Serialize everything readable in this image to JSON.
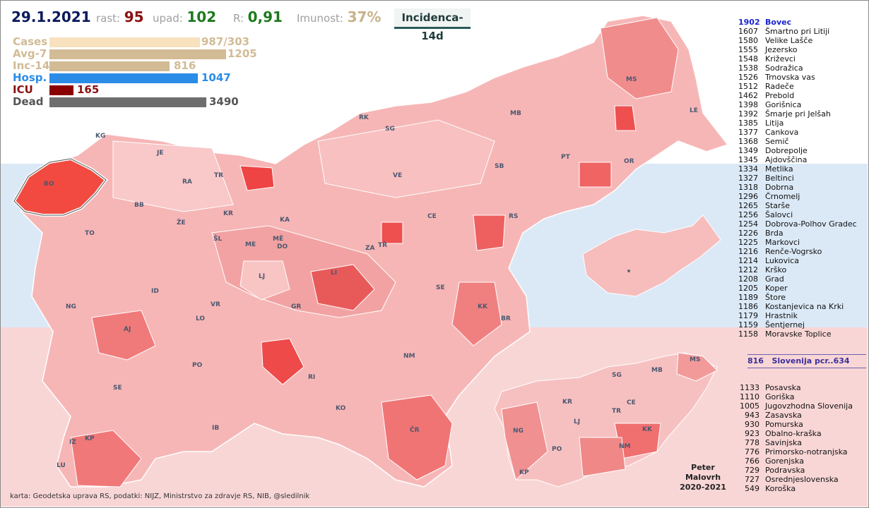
{
  "header": {
    "date": "29.1.2021",
    "rast_label": "rast:",
    "rast_value": "95",
    "upad_label": "upad:",
    "upad_value": "102",
    "r_label": "R:",
    "r_value": "0,91",
    "imunost_label": "Imunost:",
    "imunost_value": "37%",
    "mode_button": "Incidenca-14d"
  },
  "stats": [
    {
      "label": "Cases",
      "value": "987/303",
      "color": "#f7e2bd",
      "fraction": 0.28
    },
    {
      "label": "Avg-7",
      "value": "1205",
      "color": "#d2bb95",
      "fraction": 0.35
    },
    {
      "label": "Inc-14",
      "value": "816",
      "color": "#d2bb95",
      "fraction": 0.23
    },
    {
      "label": "Hosp.",
      "value": "1047",
      "color": "#2b8ce8",
      "fraction": 0.3
    },
    {
      "label": "ICU",
      "value": "165",
      "color": "#8b0000",
      "fraction": 0.047
    },
    {
      "label": "Dead",
      "value": "3490",
      "color": "#6e6e6e",
      "fraction": 1.0
    }
  ],
  "stat_label_colors": [
    "#d2bb95",
    "#d2bb95",
    "#d2bb95",
    "#2b8ce8",
    "#8b1010",
    "#555555"
  ],
  "ranking": [
    {
      "n": "1902",
      "name": "Bovec"
    },
    {
      "n": "1607",
      "name": "Šmartno pri Litiji"
    },
    {
      "n": "1580",
      "name": "Velike Lašče"
    },
    {
      "n": "1555",
      "name": "Jezersko"
    },
    {
      "n": "1548",
      "name": "Križevci"
    },
    {
      "n": "1538",
      "name": "Sodražica"
    },
    {
      "n": "1526",
      "name": "Trnovska vas"
    },
    {
      "n": "1512",
      "name": "Radeče"
    },
    {
      "n": "1462",
      "name": "Prebold"
    },
    {
      "n": "1398",
      "name": "Gorišnica"
    },
    {
      "n": "1392",
      "name": "Šmarje pri Jelšah"
    },
    {
      "n": "1385",
      "name": "Litija"
    },
    {
      "n": "1377",
      "name": "Cankova"
    },
    {
      "n": "1368",
      "name": "Semič"
    },
    {
      "n": "1349",
      "name": "Dobrepolje"
    },
    {
      "n": "1345",
      "name": "Ajdovščina"
    },
    {
      "n": "1334",
      "name": "Metlika"
    },
    {
      "n": "1327",
      "name": "Beltinci"
    },
    {
      "n": "1318",
      "name": "Dobrna"
    },
    {
      "n": "1296",
      "name": "Črnomelj"
    },
    {
      "n": "1265",
      "name": "Starše"
    },
    {
      "n": "1256",
      "name": "Šalovci"
    },
    {
      "n": "1254",
      "name": "Dobrova-Polhov Gradec"
    },
    {
      "n": "1226",
      "name": "Brda"
    },
    {
      "n": "1225",
      "name": "Markovci"
    },
    {
      "n": "1216",
      "name": "Renče-Vogrsko"
    },
    {
      "n": "1214",
      "name": "Lukovica"
    },
    {
      "n": "1212",
      "name": "Krško"
    },
    {
      "n": "1208",
      "name": "Grad"
    },
    {
      "n": "1205",
      "name": "Koper"
    },
    {
      "n": "1189",
      "name": "Štore"
    },
    {
      "n": "1186",
      "name": "Kostanjevica na Krki"
    },
    {
      "n": "1179",
      "name": "Hrastnik"
    },
    {
      "n": "1159",
      "name": "Šentjernej"
    },
    {
      "n": "1158",
      "name": "Moravske Toplice"
    }
  ],
  "slovenia": {
    "n": "816",
    "name": "Slovenija  pcr..634"
  },
  "regions": [
    {
      "n": "1133",
      "name": "Posavska"
    },
    {
      "n": "1110",
      "name": "Goriška"
    },
    {
      "n": "1005",
      "name": "Jugovzhodna Slovenija"
    },
    {
      "n": "943",
      "name": "Zasavska"
    },
    {
      "n": "930",
      "name": "Pomurska"
    },
    {
      "n": "923",
      "name": "Obalno-kraška"
    },
    {
      "n": "778",
      "name": "Savinjska"
    },
    {
      "n": "776",
      "name": "Primorsko-notranjska"
    },
    {
      "n": "766",
      "name": "Gorenjska"
    },
    {
      "n": "729",
      "name": "Podravska"
    },
    {
      "n": "727",
      "name": "Osrednjeslovenska"
    },
    {
      "n": "549",
      "name": "Koroška"
    }
  ],
  "map_labels": [
    "KG",
    "JE",
    "RA",
    "TR",
    "BO",
    "BB",
    "KR",
    "ŽE",
    "TO",
    "ŠL",
    "KA",
    "ME",
    "MĚ",
    "DO",
    "LJ",
    "ID",
    "NG",
    "VR",
    "GR",
    "LO",
    "AJ",
    "PO",
    "SE",
    "RI",
    "NM",
    "KO",
    "ČR",
    "IB",
    "IZ",
    "KP",
    "LU",
    "RK",
    "SG",
    "MB",
    "VE",
    "SB",
    "CE",
    "RS",
    "ZA",
    "TŘ",
    "LI",
    "SE",
    "KK",
    "BR",
    "PT",
    "OR",
    "MS",
    "LE"
  ],
  "inset_labels": [
    "KR",
    "SG",
    "MB",
    "MS",
    "CE",
    "TR",
    "LJ",
    "NG",
    "KK",
    "PO",
    "NM",
    "KP"
  ],
  "author": [
    "Peter",
    "Malovrh",
    "2020-2021"
  ],
  "credit": "karta: Geodetska uprava RS,  podatki: NIJZ, Ministrstvo za zdravje RS, NIB, @sledilnik",
  "colors": {
    "accent_red": "#f04040",
    "map_light": "#fbd2d2",
    "map_mid": "#f3a0a0",
    "map_dark": "#e86060"
  }
}
